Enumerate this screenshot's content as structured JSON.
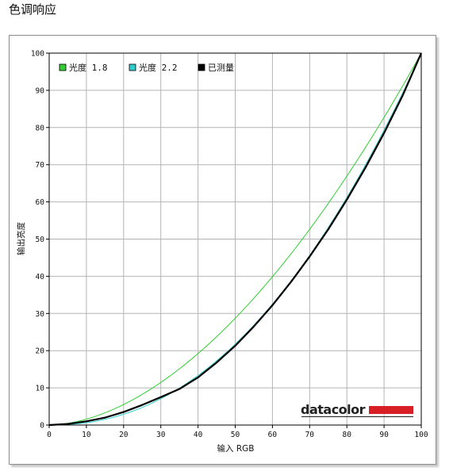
{
  "page": {
    "title": "色调响应"
  },
  "logo": {
    "text": "datacolor",
    "bar_color": "#d91f26"
  },
  "chart_data": {
    "type": "line",
    "title": "",
    "xlabel": "输入 RGB",
    "ylabel": "输出亮度",
    "xlim": [
      0,
      100
    ],
    "ylim": [
      0,
      100
    ],
    "x_ticks": [
      0,
      10,
      20,
      30,
      40,
      50,
      60,
      70,
      80,
      90,
      100
    ],
    "y_ticks": [
      0,
      10,
      20,
      30,
      40,
      50,
      60,
      70,
      80,
      90,
      100
    ],
    "grid": true,
    "legend": "top-left",
    "series": [
      {
        "name": "光度 1.8",
        "color": "#33cc33",
        "width": 1,
        "gamma": 1.8,
        "x": [
          0,
          5,
          10,
          15,
          20,
          25,
          30,
          35,
          40,
          45,
          50,
          55,
          60,
          65,
          70,
          75,
          80,
          85,
          90,
          95,
          100
        ],
        "y": [
          0,
          0.5,
          1.6,
          3.3,
          5.5,
          8.2,
          11.5,
          15.1,
          19.2,
          23.8,
          28.7,
          34.1,
          39.9,
          46.0,
          52.6,
          59.6,
          66.9,
          74.6,
          82.7,
          91.2,
          100
        ]
      },
      {
        "name": "光度 2.2",
        "color": "#33cccc",
        "width": 1,
        "gamma": 2.2,
        "x": [
          0,
          5,
          10,
          15,
          20,
          25,
          30,
          35,
          40,
          45,
          50,
          55,
          60,
          65,
          70,
          75,
          80,
          85,
          90,
          95,
          100
        ],
        "y": [
          0,
          0.1,
          0.6,
          1.5,
          2.9,
          4.7,
          7.1,
          9.9,
          13.3,
          17.2,
          21.8,
          26.9,
          32.5,
          38.8,
          45.6,
          53.1,
          61.2,
          69.9,
          79.3,
          89.3,
          100
        ]
      },
      {
        "name": "已测量",
        "color": "#000000",
        "width": 2.2,
        "x": [
          0,
          5,
          10,
          15,
          20,
          25,
          30,
          35,
          40,
          45,
          50,
          55,
          60,
          65,
          70,
          75,
          80,
          85,
          90,
          95,
          100
        ],
        "y": [
          0,
          0.3,
          1.0,
          2.0,
          3.5,
          5.4,
          7.5,
          9.7,
          12.8,
          16.8,
          21.3,
          26.5,
          32.2,
          38.5,
          45.3,
          52.6,
          60.6,
          69.2,
          78.5,
          88.6,
          100
        ]
      }
    ]
  }
}
